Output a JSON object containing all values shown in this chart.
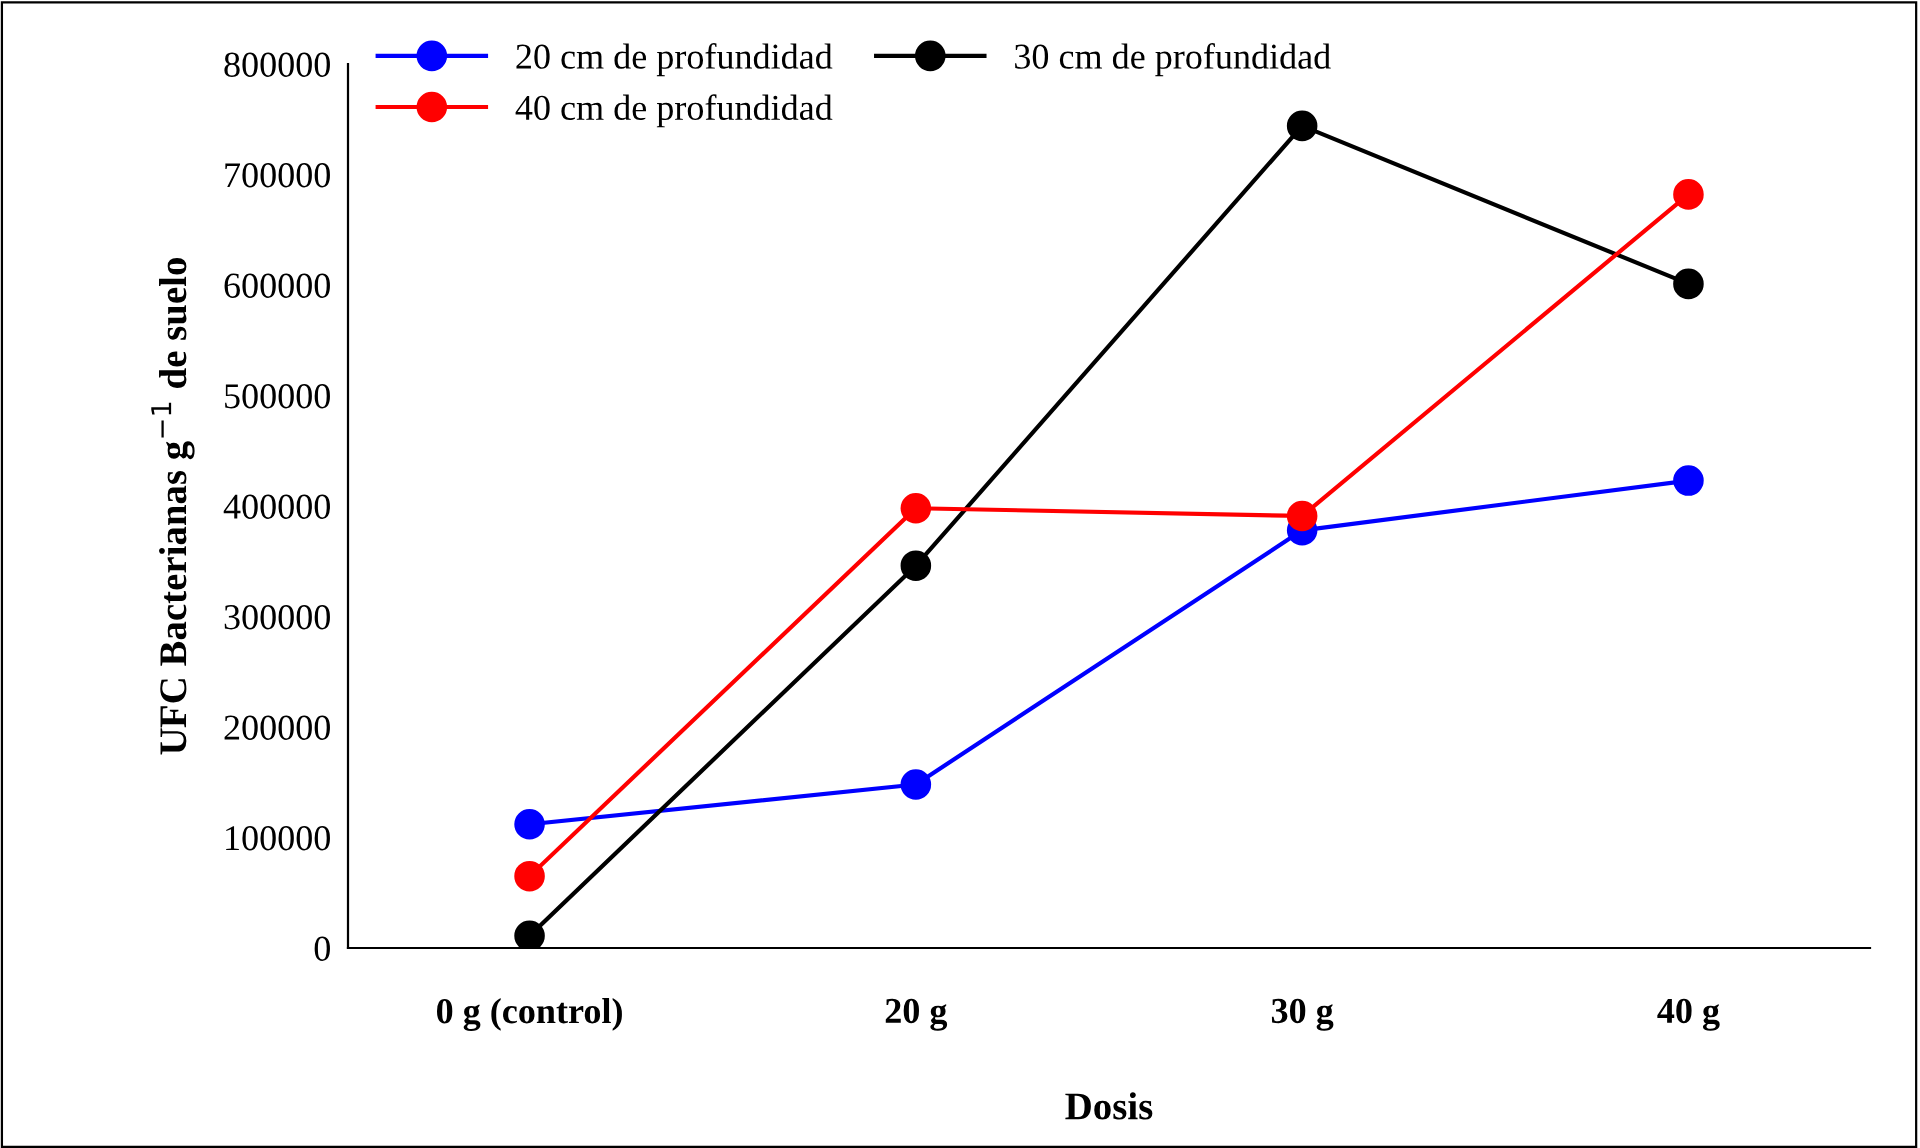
{
  "chart_data": {
    "type": "line",
    "xlabel": "Dosis",
    "ylabel": "UFC Bacterianas g$^{−1}$ de suelo",
    "categories": [
      "0 g (control)",
      "20 g",
      "30 g",
      "40 g"
    ],
    "series": [
      {
        "name": "20 cm de profundidad",
        "color": "#0000ff",
        "values": [
          112000,
          148000,
          378000,
          423000
        ]
      },
      {
        "name": "30 cm de profundidad",
        "color": "#000000",
        "values": [
          11000,
          346000,
          744000,
          601000
        ]
      },
      {
        "name": "40 cm de profundidad",
        "color": "#ff0000",
        "values": [
          65000,
          398000,
          391000,
          682000
        ]
      }
    ],
    "ylim": [
      0,
      800000
    ],
    "yticks": [
      0,
      100000,
      200000,
      300000,
      400000,
      500000,
      600000,
      700000,
      800000
    ],
    "marker": "circle",
    "line_style": "solid",
    "grid": false,
    "legend": "top left"
  }
}
